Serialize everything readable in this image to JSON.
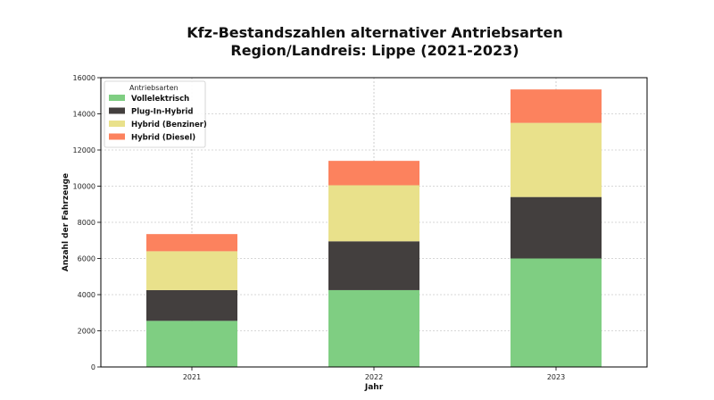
{
  "chart_data": {
    "type": "bar",
    "stacked": true,
    "title": [
      "Kfz-Bestandszahlen alternativer Antriebsarten",
      "Region/Landreis: Lippe (2021-2023)"
    ],
    "xlabel": "Jahr",
    "ylabel": "Anzahl der Fahrzeuge",
    "categories": [
      "2021",
      "2022",
      "2023"
    ],
    "ylim": [
      0,
      16000
    ],
    "yticks": [
      0,
      2000,
      4000,
      6000,
      8000,
      10000,
      12000,
      14000,
      16000
    ],
    "grid": true,
    "legend": {
      "title": "Antriebsarten",
      "placement": "top-left"
    },
    "series": [
      {
        "name": "Vollelektrisch",
        "color": "#7fce82",
        "values": [
          2550,
          4250,
          6000
        ]
      },
      {
        "name": "Plug-In-Hybrid",
        "color": "#433f3e",
        "values": [
          1700,
          2700,
          3400
        ]
      },
      {
        "name": "Hybrid (Benziner)",
        "color": "#e9e18b",
        "values": [
          2150,
          3100,
          4100
        ]
      },
      {
        "name": "Hybrid (Diesel)",
        "color": "#fc825e",
        "values": [
          950,
          1350,
          1850
        ]
      }
    ]
  }
}
